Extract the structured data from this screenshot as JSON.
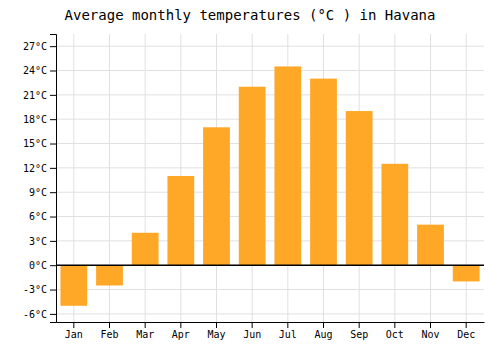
{
  "chart_data": {
    "type": "bar",
    "title": "Average monthly temperatures (°C ) in Havana",
    "categories": [
      "Jan",
      "Feb",
      "Mar",
      "Apr",
      "May",
      "Jun",
      "Jul",
      "Aug",
      "Sep",
      "Oct",
      "Nov",
      "Dec"
    ],
    "values": [
      -5.0,
      -2.5,
      4.0,
      11.0,
      17.0,
      22.0,
      24.5,
      23.0,
      19.0,
      12.5,
      5.0,
      -2.0
    ],
    "color": "#FFA726",
    "ylim": [
      -7,
      28.5
    ],
    "yticks": [
      {
        "value": -6,
        "label": "-6°C"
      },
      {
        "value": -3,
        "label": "-3°C"
      },
      {
        "value": 0,
        "label": "0°C"
      },
      {
        "value": 3,
        "label": "3°C"
      },
      {
        "value": 6,
        "label": "6°C"
      },
      {
        "value": 9,
        "label": "9°C"
      },
      {
        "value": 12,
        "label": "12°C"
      },
      {
        "value": 15,
        "label": "15°C"
      },
      {
        "value": 18,
        "label": "18°C"
      },
      {
        "value": 21,
        "label": "21°C"
      },
      {
        "value": 24,
        "label": "24°C"
      },
      {
        "value": 27,
        "label": "27°C"
      }
    ],
    "grid": true
  }
}
